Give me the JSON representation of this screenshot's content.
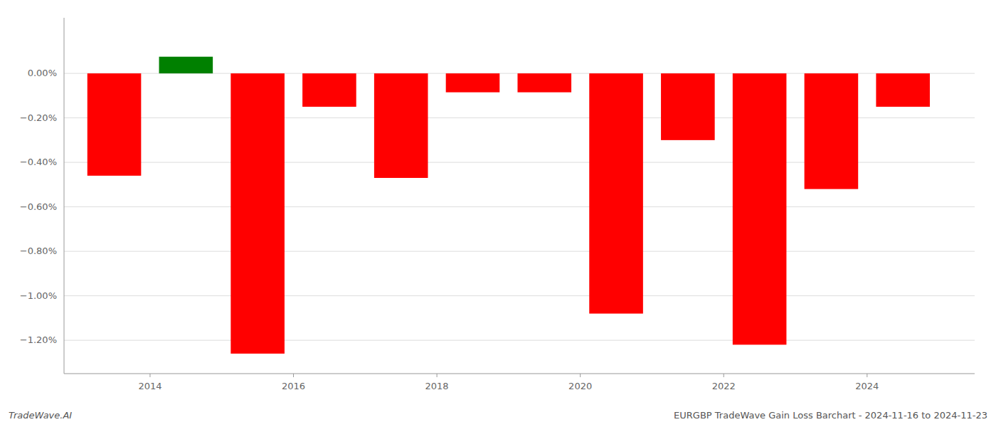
{
  "chart_data": {
    "type": "bar",
    "title": "EURGBP TradeWave Gain Loss Barchart - 2024-11-16 to 2024-11-23",
    "annotations": [
      "TradeWave.AI"
    ],
    "x": [
      2013,
      2014,
      2015,
      2016,
      2017,
      2018,
      2019,
      2020,
      2021,
      2022,
      2023,
      2024
    ],
    "values": [
      -0.0046,
      0.00075,
      -0.0126,
      -0.0015,
      -0.0047,
      -0.00085,
      -0.00085,
      -0.0108,
      -0.003,
      -0.0122,
      -0.0052,
      -0.0015
    ],
    "colors": [
      "#ff0000",
      "#008000",
      "#ff0000",
      "#ff0000",
      "#ff0000",
      "#ff0000",
      "#ff0000",
      "#ff0000",
      "#ff0000",
      "#ff0000",
      "#ff0000",
      "#ff0000"
    ],
    "xlim": [
      2012.3,
      2025.0
    ],
    "xticks": [
      {
        "value": 2013.5,
        "label": "2014"
      },
      {
        "value": 2015.5,
        "label": "2016"
      },
      {
        "value": 2017.5,
        "label": "2018"
      },
      {
        "value": 2019.5,
        "label": "2020"
      },
      {
        "value": 2021.5,
        "label": "2022"
      },
      {
        "value": 2023.5,
        "label": "2024"
      }
    ],
    "ylim": [
      -0.0135,
      0.0025
    ],
    "yticks": [
      {
        "value": 0.0,
        "label": "0.00%"
      },
      {
        "value": -0.002,
        "label": "−0.20%"
      },
      {
        "value": -0.004,
        "label": "−0.40%"
      },
      {
        "value": -0.006,
        "label": "−0.60%"
      },
      {
        "value": -0.008,
        "label": "−0.80%"
      },
      {
        "value": -0.01,
        "label": "−1.00%"
      },
      {
        "value": -0.012,
        "label": "−1.20%"
      }
    ],
    "grid": true
  }
}
